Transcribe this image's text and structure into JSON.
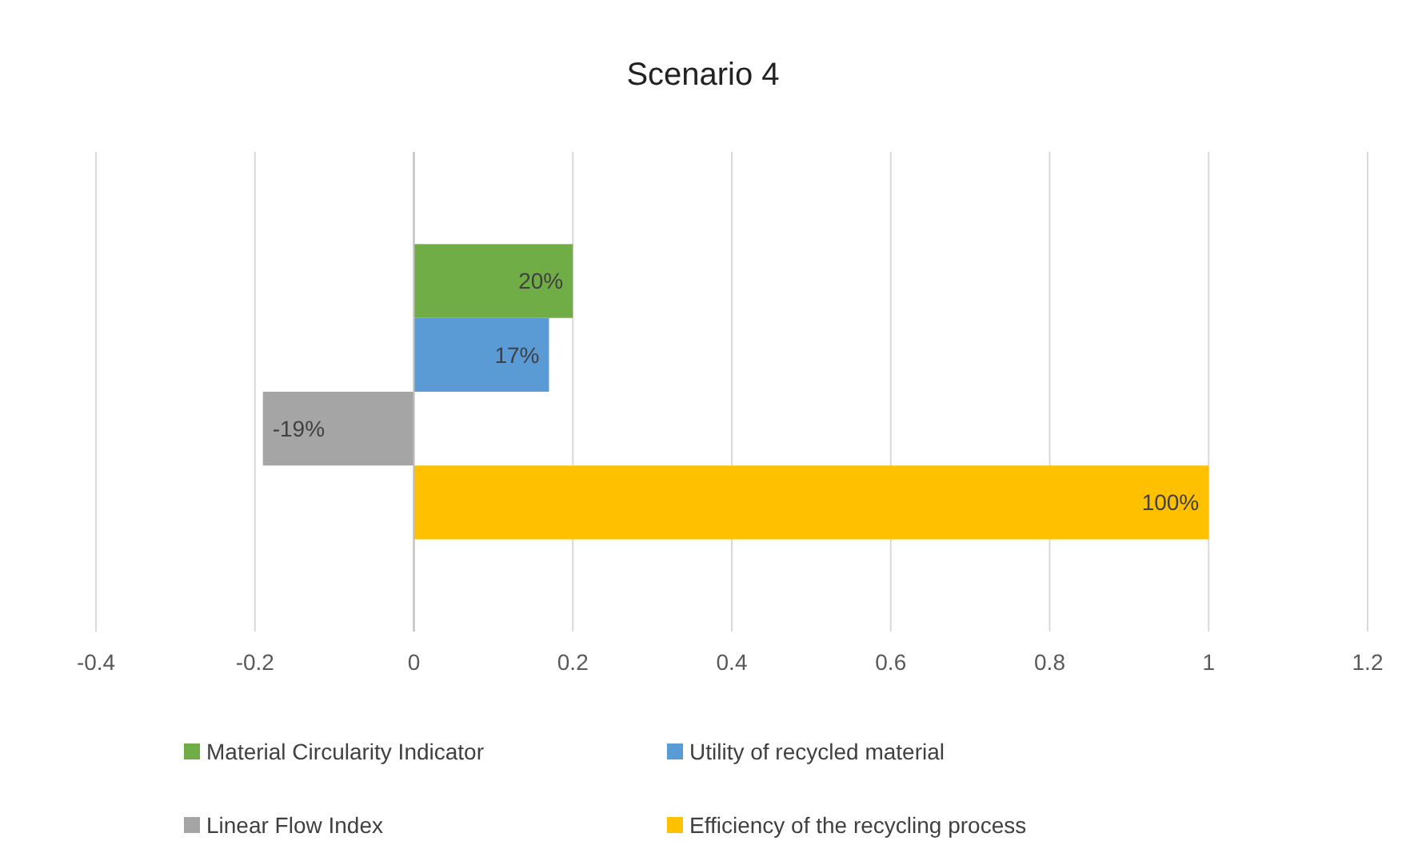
{
  "chart_data": {
    "type": "bar",
    "orientation": "horizontal",
    "title": "Scenario 4",
    "categories": [
      null
    ],
    "series": [
      {
        "name": "Material Circularity Indicator",
        "color": "#70ad47",
        "values": [
          0.2
        ],
        "value_labels": [
          "20%"
        ]
      },
      {
        "name": "Utility of recycled material",
        "color": "#5b9bd5",
        "values": [
          0.17
        ],
        "value_labels": [
          "17%"
        ]
      },
      {
        "name": "Linear Flow Index",
        "color": "#a5a5a5",
        "values": [
          -0.19
        ],
        "value_labels": [
          "-19%"
        ]
      },
      {
        "name": "Efficiency of the recycling process",
        "color": "#ffc000",
        "values": [
          1
        ],
        "value_labels": [
          "100%"
        ]
      }
    ],
    "xlim": [
      -0.4,
      1.2
    ],
    "xticks": [
      -0.4,
      -0.2,
      0,
      0.2,
      0.4,
      0.6,
      0.8,
      1,
      1.2
    ],
    "grid": "x",
    "legend": "bottom"
  }
}
